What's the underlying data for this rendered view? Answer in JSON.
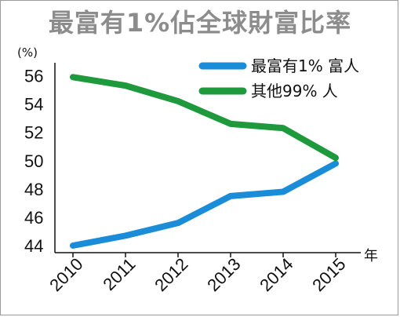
{
  "title": "最富有1%佔全球財富比率",
  "chart_data": {
    "type": "line",
    "categories": [
      "2010",
      "2011",
      "2012",
      "2013",
      "2014",
      "2015"
    ],
    "series": [
      {
        "name": "最富有1% 富人",
        "color": "#1a8cd8",
        "values": [
          44.0,
          44.7,
          45.6,
          47.5,
          47.8,
          49.8
        ]
      },
      {
        "name": "其他99% 人",
        "color": "#1e9a3c",
        "values": [
          55.9,
          55.3,
          54.2,
          52.6,
          52.3,
          50.2
        ]
      }
    ],
    "ylabel": "(%)",
    "xlabel": "年",
    "ylim": [
      44,
      57
    ],
    "yticks": [
      44,
      46,
      48,
      50,
      52,
      54,
      56
    ],
    "legend_position": "top-right",
    "grid": false
  }
}
